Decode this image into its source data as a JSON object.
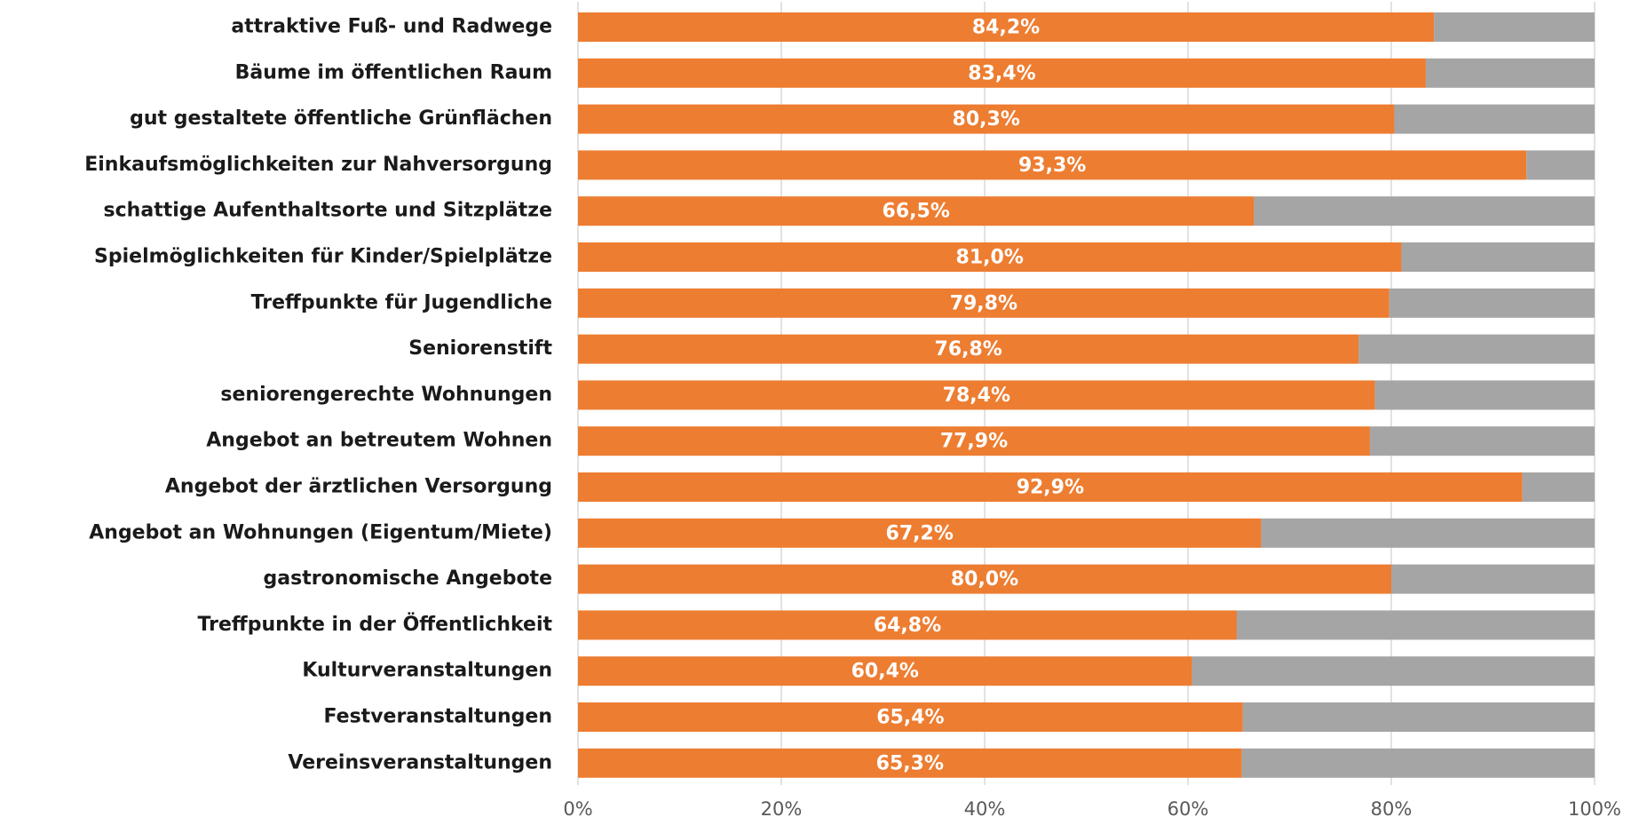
{
  "chart_data": {
    "type": "stacked_barh",
    "categories": [
      "attraktive Fuß- und Radwege",
      "Bäume im öffentlichen Raum",
      "gut gestaltete öffentliche Grünflächen",
      "Einkaufsmöglichkeiten zur Nahversorgung",
      "schattige Aufenthaltsorte und Sitzplätze",
      "Spielmöglichkeiten für Kinder/Spielplätze",
      "Treffpunkte für Jugendliche",
      "Seniorenstift",
      "seniorengerechte Wohnungen",
      "Angebot an betreutem Wohnen",
      "Angebot der ärztlichen Versorgung",
      "Angebot an Wohnungen (Eigentum/Miete)",
      "gastronomische Angebote",
      "Treffpunkte in der Öffentlichkeit",
      "Kulturveranstaltungen",
      "Festveranstaltungen",
      "Vereinsveranstaltungen"
    ],
    "series": [
      {
        "color": "#ed7d31",
        "values": [
          84.2,
          83.4,
          80.3,
          93.3,
          66.5,
          81.0,
          79.8,
          76.8,
          78.4,
          77.9,
          92.9,
          67.2,
          80.0,
          64.8,
          60.4,
          65.4,
          65.3
        ],
        "value_labels": [
          "84,2%",
          "83,4%",
          "80,3%",
          "93,3%",
          "66,5%",
          "81,0%",
          "79,8%",
          "76,8%",
          "78,4%",
          "77,9%",
          "92,9%",
          "67,2%",
          "80,0%",
          "64,8%",
          "60,4%",
          "65,4%",
          "65,3%"
        ]
      },
      {
        "color": "#a5a5a5",
        "values": [
          15.8,
          16.6,
          19.7,
          6.7,
          33.5,
          19.0,
          20.2,
          23.2,
          21.6,
          22.1,
          7.1,
          32.8,
          20.0,
          35.2,
          39.6,
          34.6,
          34.7
        ]
      }
    ],
    "xlim": [
      0,
      100
    ],
    "xticks": [
      {
        "value": 0,
        "label": "0%"
      },
      {
        "value": 20,
        "label": "20%"
      },
      {
        "value": 40,
        "label": "40%"
      },
      {
        "value": 60,
        "label": "60%"
      },
      {
        "value": 80,
        "label": "80%"
      },
      {
        "value": 100,
        "label": "100%"
      }
    ],
    "grid": true
  }
}
